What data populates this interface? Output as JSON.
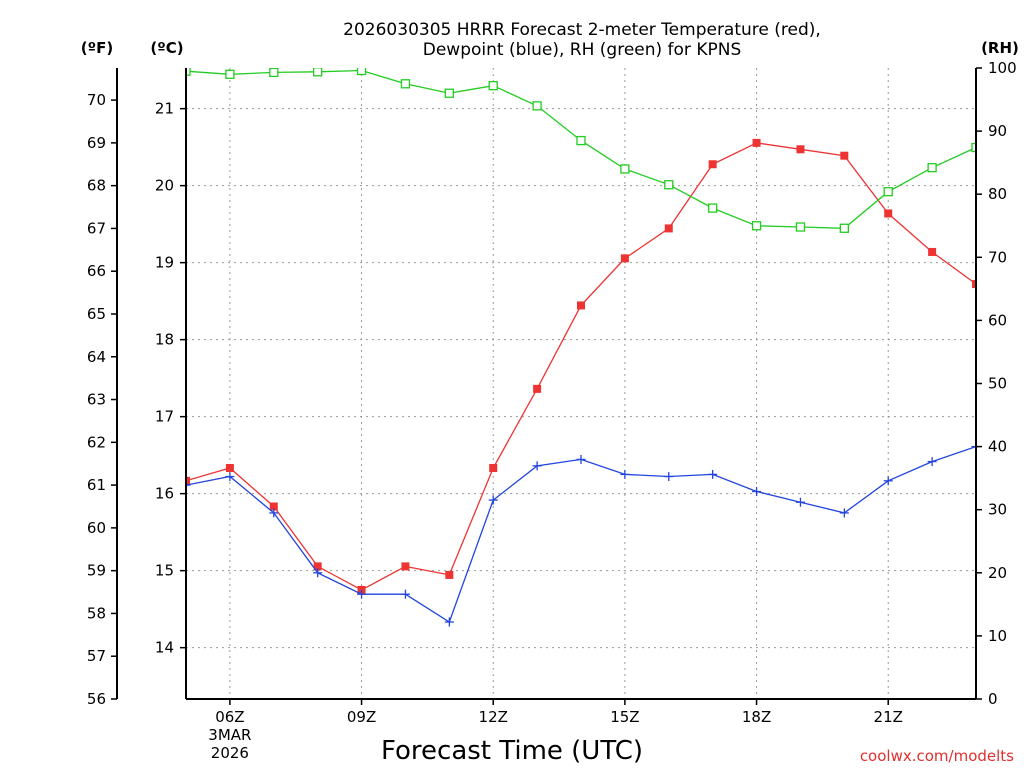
{
  "chart_data": {
    "type": "line",
    "title_line1": "2026030305 HRRR Forecast 2-meter Temperature (red),",
    "title_line2": "Dewpoint (blue), RH (green) for KPNS",
    "xlabel": "Forecast Time (UTC)",
    "unit_f": "(ºF)",
    "unit_c": "(ºC)",
    "unit_rh": "(RH)",
    "credit": "coolwx.com/modelts",
    "credit_color": "#e03030",
    "x_hours": [
      5,
      6,
      7,
      8,
      9,
      10,
      11,
      12,
      13,
      14,
      15,
      16,
      17,
      18,
      19,
      20,
      21,
      22,
      23
    ],
    "x_range": [
      5,
      23
    ],
    "x_ticks": [
      {
        "hour": 6,
        "label": "06Z",
        "sub1": "3MAR",
        "sub2": "2026"
      },
      {
        "hour": 9,
        "label": "09Z"
      },
      {
        "hour": 12,
        "label": "12Z"
      },
      {
        "hour": 15,
        "label": "15Z"
      },
      {
        "hour": 18,
        "label": "18Z"
      },
      {
        "hour": 21,
        "label": "21Z"
      }
    ],
    "f_range": [
      56,
      70.75
    ],
    "f_ticks": [
      "56",
      "57",
      "58",
      "59",
      "60",
      "61",
      "62",
      "63",
      "64",
      "65",
      "66",
      "67",
      "68",
      "69",
      "70"
    ],
    "c_ticks": [
      "14",
      "15",
      "16",
      "17",
      "18",
      "19",
      "20",
      "21"
    ],
    "rh_range": [
      0,
      100
    ],
    "rh_ticks": [
      "0",
      "10",
      "20",
      "30",
      "40",
      "50",
      "60",
      "70",
      "80",
      "90",
      "100"
    ],
    "series": [
      {
        "name": "Temperature",
        "unit": "F",
        "color": "#ee3333",
        "marker": "filled-square",
        "values": [
          61.1,
          61.4,
          60.5,
          59.1,
          58.55,
          59.1,
          58.9,
          61.4,
          63.25,
          65.2,
          66.3,
          67.0,
          68.5,
          69.0,
          68.85,
          68.7,
          67.35,
          66.45,
          65.7
        ]
      },
      {
        "name": "Dewpoint",
        "unit": "F",
        "color": "#2244dd",
        "marker": "plus",
        "values": [
          61.0,
          61.2,
          60.35,
          58.95,
          58.45,
          58.45,
          57.8,
          60.65,
          61.45,
          61.6,
          61.25,
          61.2,
          61.25,
          60.85,
          60.6,
          60.35,
          61.1,
          61.55,
          61.9
        ]
      },
      {
        "name": "RH",
        "unit": "%",
        "color": "#22cc22",
        "marker": "open-square",
        "values": [
          99.5,
          99.0,
          99.3,
          99.4,
          99.6,
          97.5,
          96.0,
          97.2,
          94.0,
          88.5,
          84.0,
          81.5,
          77.8,
          75.0,
          74.8,
          74.6,
          80.4,
          84.2,
          87.4
        ]
      }
    ]
  }
}
